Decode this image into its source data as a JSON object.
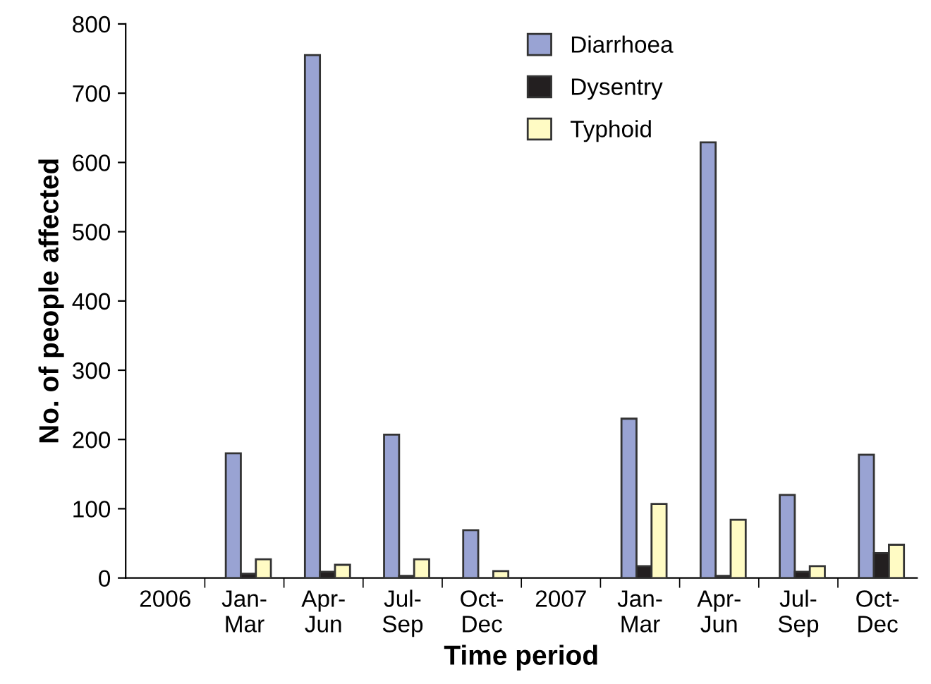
{
  "chart_data": {
    "type": "bar",
    "xlabel": "Time period",
    "ylabel": "No. of people affected",
    "categories": [
      "2006",
      "Jan-\nMar",
      "Apr-\nJun",
      "Jul-\nSep",
      "Oct-\nDec",
      "2007",
      "Jan-\nMar",
      "Apr-\nJun",
      "Jul-\nSep",
      "Oct-\nDec"
    ],
    "series": [
      {
        "name": "Diarrhoea",
        "color": "#99a3d3",
        "values": [
          null,
          180,
          755,
          207,
          69,
          null,
          230,
          629,
          120,
          178
        ]
      },
      {
        "name": "Dysentry",
        "color": "#231f20",
        "values": [
          null,
          6,
          9,
          3,
          null,
          null,
          17,
          3,
          9,
          36
        ]
      },
      {
        "name": "Typhoid",
        "color": "#fffbc4",
        "values": [
          null,
          27,
          19,
          27,
          10,
          null,
          107,
          84,
          17,
          48
        ]
      }
    ],
    "ylim": [
      0,
      800
    ],
    "yticks": [
      0,
      100,
      200,
      300,
      400,
      500,
      600,
      700,
      800
    ],
    "grid": false,
    "legend": "top"
  }
}
